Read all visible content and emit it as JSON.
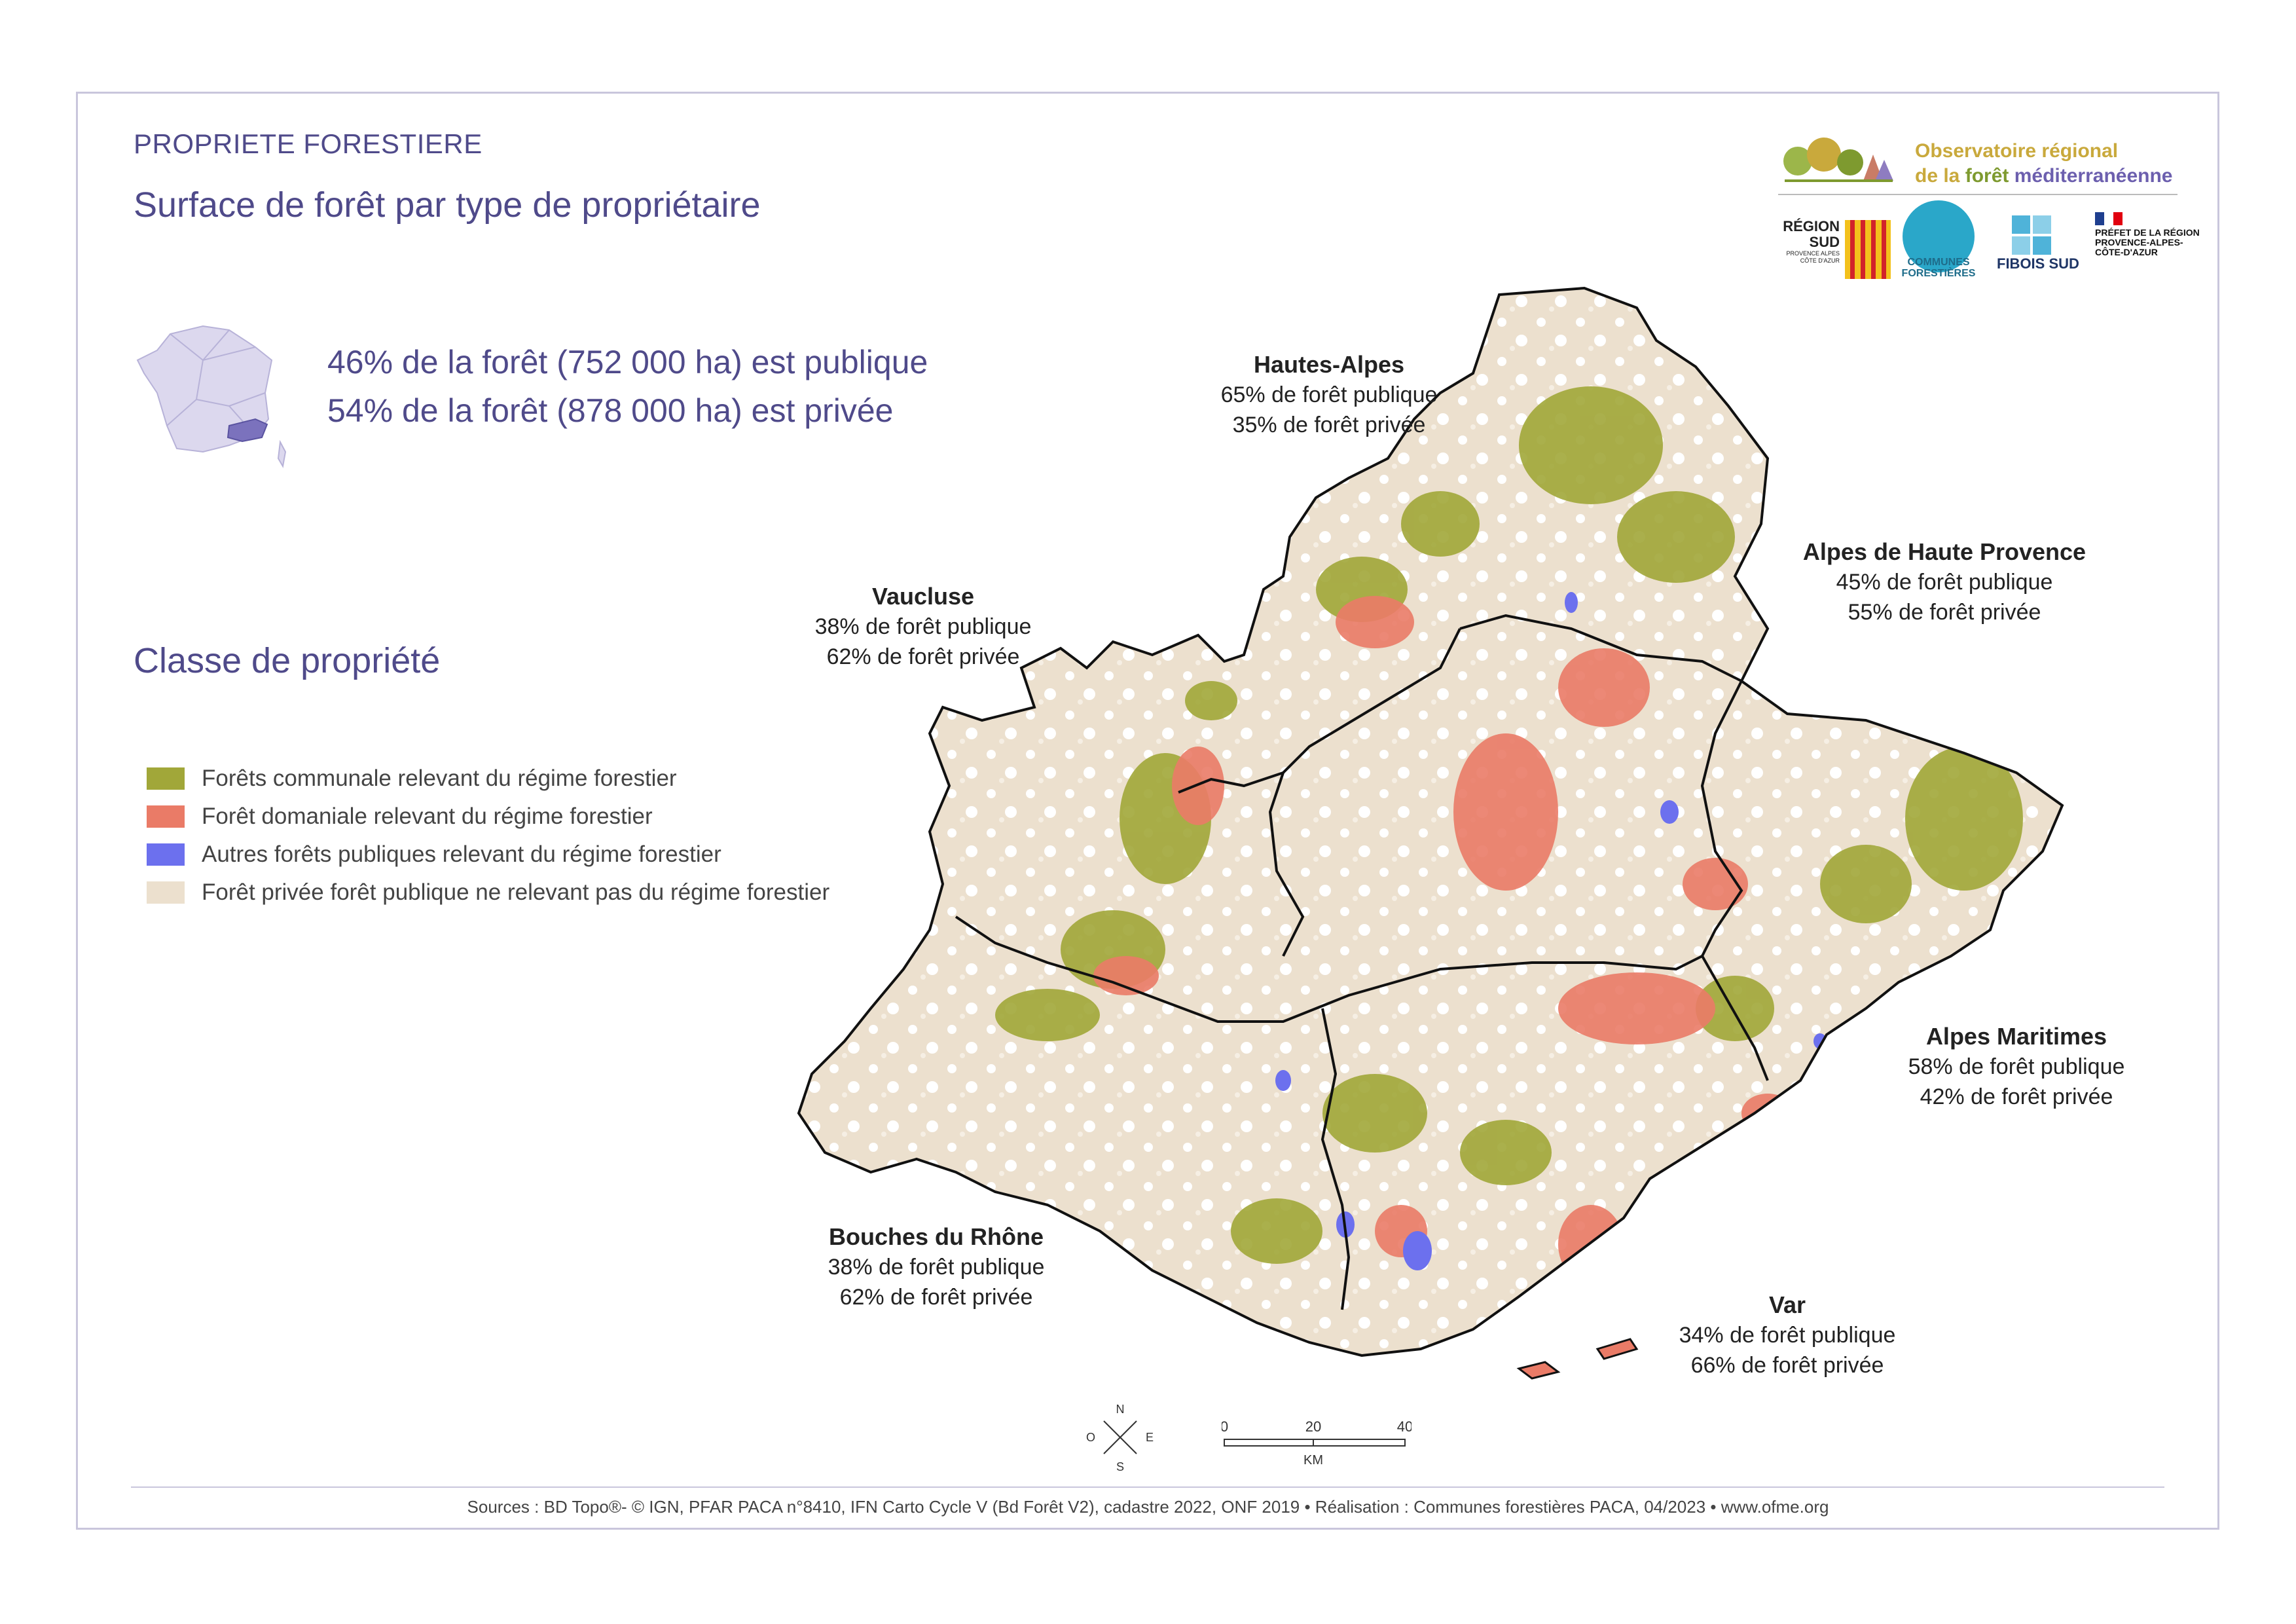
{
  "header": {
    "category": "PROPRIETE FORESTIERE",
    "title": "Surface de forêt par type de propriétaire"
  },
  "summary": {
    "line1": "46% de la forêt (752 000 ha) est publique",
    "line2": "54% de la forêt (878 000 ha) est privée"
  },
  "legend": {
    "title": "Classe de propriété",
    "items": [
      {
        "label": "Forêts communale relevant du régime forestier",
        "color": "#a1a739"
      },
      {
        "label": "Forêt domaniale relevant du régime forestier",
        "color": "#ea7b67"
      },
      {
        "label": "Autres forêts publiques relevant du régime forestier",
        "color": "#6c70ee"
      },
      {
        "label": "Forêt privée forêt publique ne relevant pas du régime forestier",
        "color": "#ece0ce"
      }
    ]
  },
  "departments": [
    {
      "name": "Hautes-Alpes",
      "public": "65% de forêt publique",
      "private": "35% de forêt privée"
    },
    {
      "name": "Alpes de Haute Provence",
      "public": "45% de forêt publique",
      "private": "55% de forêt privée"
    },
    {
      "name": "Vaucluse",
      "public": "38% de forêt publique",
      "private": "62% de forêt privée"
    },
    {
      "name": "Alpes Maritimes",
      "public": "58% de forêt publique",
      "private": "42% de forêt privée"
    },
    {
      "name": "Bouches du Rhône",
      "public": "38% de forêt publique",
      "private": "62% de forêt privée"
    },
    {
      "name": "Var",
      "public": "34% de forêt publique",
      "private": "66% de forêt privée"
    }
  ],
  "logos": {
    "observatoire_line1": "Observatoire régional",
    "observatoire_line2a": "de la ",
    "observatoire_line2b": "forêt",
    "observatoire_line2c": " méditerranéenne",
    "region_name": "RÉGION SUD",
    "region_sub": "PROVENCE ALPES CÔTE D'AZUR",
    "communes": "COMMUNES FORESTIÈRES",
    "fibois": "FIBOIS SUD",
    "prefet": "PRÉFET DE LA RÉGION PROVENCE-ALPES-CÔTE-D'AZUR"
  },
  "compass": {
    "n": "N",
    "s": "S",
    "e": "E",
    "o": "O"
  },
  "scale": {
    "t0": "0",
    "t1": "20",
    "t2": "40",
    "unit": "KM"
  },
  "footer": {
    "sources": "Sources : BD Topo®- © IGN, PFAR PACA n°8410, IFN Carto Cycle V (Bd Forêt V2), cadastre 2022, ONF 2019 • Réalisation : Communes forestières PACA, 04/2023 • www.ofme.org"
  },
  "colors": {
    "communal": "#a1a739",
    "domanial": "#ea7b67",
    "other_public": "#6c70ee",
    "private": "#ece0ce",
    "accent_text": "#4f4a8a"
  }
}
